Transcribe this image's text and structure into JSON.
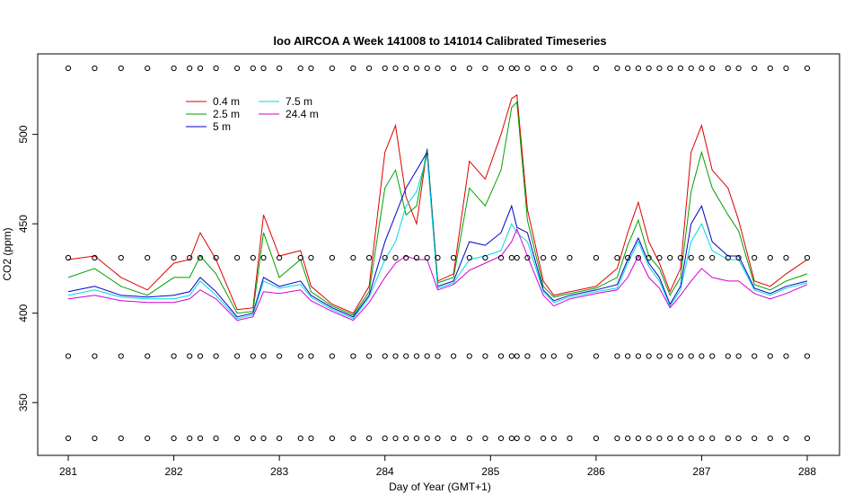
{
  "chart_data": {
    "type": "line",
    "title": "loo AIRCOA A  Week 141008 to 141014  Calibrated Timeseries",
    "xlabel": "Day of Year (GMT+1)",
    "ylabel": "CO2 (ppm)",
    "xlim": [
      281,
      288
    ],
    "ylim": [
      325,
      540
    ],
    "x_ticks": [
      "281",
      "282",
      "283",
      "284",
      "285",
      "286",
      "287",
      "288"
    ],
    "y_ticks": [
      "350",
      "400",
      "450",
      "500"
    ],
    "legend_position": "top-left",
    "grid": false,
    "x": [
      281.0,
      281.25,
      281.5,
      281.75,
      282.0,
      282.15,
      282.25,
      282.4,
      282.6,
      282.75,
      282.85,
      283.0,
      283.2,
      283.3,
      283.5,
      283.7,
      283.85,
      284.0,
      284.1,
      284.2,
      284.3,
      284.4,
      284.5,
      284.65,
      284.8,
      284.95,
      285.1,
      285.2,
      285.25,
      285.35,
      285.5,
      285.6,
      285.75,
      286.0,
      286.2,
      286.3,
      286.4,
      286.5,
      286.6,
      286.7,
      286.8,
      286.9,
      287.0,
      287.1,
      287.25,
      287.35,
      287.5,
      287.65,
      287.8,
      288.0
    ],
    "series": [
      {
        "name": "0.4 m",
        "color": "#dd0000",
        "values": [
          430,
          432,
          420,
          413,
          428,
          430,
          445,
          430,
          402,
          403,
          455,
          432,
          435,
          415,
          405,
          400,
          415,
          490,
          505,
          465,
          450,
          492,
          418,
          422,
          485,
          475,
          500,
          520,
          522,
          458,
          418,
          410,
          412,
          415,
          425,
          445,
          462,
          440,
          428,
          412,
          425,
          490,
          505,
          480,
          470,
          452,
          418,
          415,
          422,
          430
        ]
      },
      {
        "name": "2.5 m",
        "color": "#00a000",
        "values": [
          420,
          425,
          415,
          410,
          420,
          420,
          432,
          422,
          400,
          401,
          445,
          420,
          430,
          412,
          404,
          399,
          412,
          470,
          480,
          455,
          460,
          492,
          417,
          420,
          470,
          460,
          480,
          515,
          518,
          452,
          415,
          409,
          411,
          414,
          420,
          438,
          452,
          432,
          425,
          410,
          420,
          468,
          490,
          470,
          455,
          446,
          416,
          413,
          418,
          422
        ]
      },
      {
        "name": "5 m",
        "color": "#0000c8",
        "values": [
          412,
          415,
          410,
          409,
          410,
          412,
          420,
          412,
          398,
          400,
          420,
          415,
          418,
          410,
          403,
          398,
          410,
          440,
          455,
          470,
          480,
          490,
          415,
          418,
          440,
          438,
          445,
          460,
          448,
          445,
          413,
          407,
          410,
          413,
          416,
          430,
          442,
          428,
          420,
          405,
          415,
          450,
          460,
          440,
          432,
          432,
          414,
          411,
          415,
          418
        ]
      },
      {
        "name": "7.5 m",
        "color": "#00d8e0",
        "values": [
          410,
          413,
          409,
          408,
          408,
          410,
          418,
          410,
          397,
          399,
          418,
          414,
          416,
          409,
          402,
          397,
          409,
          430,
          440,
          460,
          468,
          488,
          414,
          417,
          430,
          432,
          435,
          450,
          445,
          440,
          412,
          406,
          409,
          412,
          414,
          428,
          440,
          426,
          418,
          404,
          413,
          440,
          450,
          435,
          430,
          430,
          413,
          410,
          414,
          417
        ]
      },
      {
        "name": "24.4 m",
        "color": "#d000d0",
        "values": [
          408,
          410,
          407,
          406,
          406,
          408,
          413,
          408,
          396,
          398,
          412,
          411,
          413,
          407,
          401,
          396,
          406,
          420,
          428,
          432,
          430,
          430,
          413,
          416,
          424,
          428,
          432,
          440,
          447,
          432,
          410,
          404,
          408,
          411,
          413,
          420,
          432,
          420,
          414,
          403,
          410,
          418,
          425,
          420,
          418,
          418,
          411,
          408,
          411,
          416
        ]
      },
      {
        "name": "",
        "color": "#000000",
        "marker": "circle",
        "values": [
          537,
          537,
          537,
          537,
          537,
          537,
          537,
          537,
          537,
          537,
          537,
          537,
          537,
          537,
          537,
          537,
          537,
          537,
          537,
          537,
          537,
          537,
          537,
          537,
          537,
          537,
          537,
          537,
          537,
          537,
          537,
          537,
          537,
          537,
          537,
          537,
          537,
          537,
          537,
          537,
          537,
          537,
          537,
          537,
          537,
          537,
          537,
          537,
          537,
          537
        ]
      },
      {
        "name": "",
        "color": "#000000",
        "marker": "circle",
        "values": [
          431,
          431,
          431,
          431,
          431,
          431,
          431,
          431,
          431,
          431,
          431,
          431,
          431,
          431,
          431,
          431,
          431,
          431,
          431,
          431,
          431,
          431,
          431,
          431,
          431,
          431,
          431,
          431,
          431,
          431,
          431,
          431,
          431,
          431,
          431,
          431,
          431,
          431,
          431,
          431,
          431,
          431,
          431,
          431,
          431,
          431,
          431,
          431,
          431,
          431
        ]
      },
      {
        "name": "",
        "color": "#000000",
        "marker": "circle",
        "values": [
          376,
          376,
          376,
          376,
          376,
          376,
          376,
          376,
          376,
          376,
          376,
          376,
          376,
          376,
          376,
          376,
          376,
          376,
          376,
          376,
          376,
          376,
          376,
          376,
          376,
          376,
          376,
          376,
          376,
          376,
          376,
          376,
          376,
          376,
          376,
          376,
          376,
          376,
          376,
          376,
          376,
          376,
          376,
          376,
          376,
          376,
          376,
          376,
          376,
          376
        ]
      },
      {
        "name": "",
        "color": "#000000",
        "marker": "circle",
        "values": [
          330,
          330,
          330,
          330,
          330,
          330,
          330,
          330,
          330,
          330,
          330,
          330,
          330,
          330,
          330,
          330,
          330,
          330,
          330,
          330,
          330,
          330,
          330,
          330,
          330,
          330,
          330,
          330,
          330,
          330,
          330,
          330,
          330,
          330,
          330,
          330,
          330,
          330,
          330,
          330,
          330,
          330,
          330,
          330,
          330,
          330,
          330,
          330,
          330,
          330
        ]
      }
    ]
  }
}
